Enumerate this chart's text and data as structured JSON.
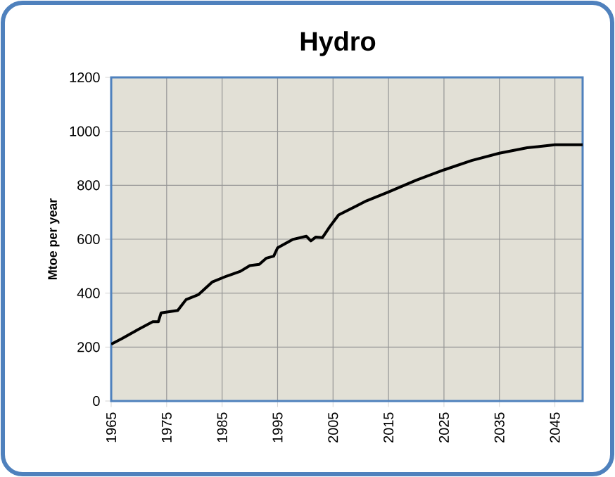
{
  "chart_data": {
    "type": "line",
    "title": "Hydro",
    "ylabel": "Mtoe per year",
    "x": [
      1965,
      1967,
      1970,
      1972.5,
      1973.5,
      1974,
      1977,
      1978.5,
      1980.7,
      1983.2,
      1985.8,
      1988.3,
      1990,
      1991.7,
      1993,
      1994.3,
      1995,
      1997.7,
      2000.2,
      2001,
      2001.9,
      2003.1,
      2004.4,
      2006,
      2011,
      2015,
      2020,
      2025,
      2030,
      2035,
      2040,
      2045,
      2050
    ],
    "values": [
      211,
      232,
      267,
      294,
      294,
      327,
      336,
      376,
      394,
      441,
      463,
      481,
      502,
      507,
      530,
      537,
      568,
      599,
      611,
      594,
      608,
      606,
      646,
      690,
      742,
      775,
      819,
      857,
      892,
      919,
      939,
      950,
      950
    ],
    "color": "#000000",
    "xlim": [
      1965,
      2050
    ],
    "ylim": [
      0,
      1200
    ],
    "xticks": [
      1965,
      1975,
      1985,
      1995,
      2005,
      2015,
      2025,
      2035,
      2045
    ],
    "yticks": [
      0,
      200,
      400,
      600,
      800,
      1000,
      1200
    ],
    "grid": true
  }
}
